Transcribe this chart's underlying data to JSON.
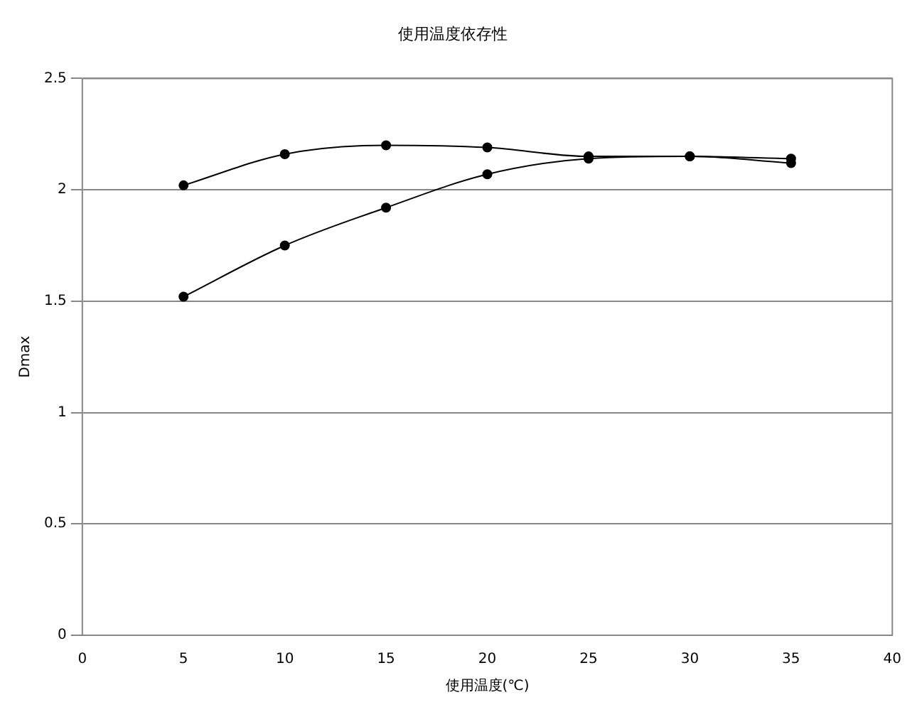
{
  "chart_data": {
    "type": "line",
    "title": "使用温度依存性",
    "xlabel": "使用温度(℃)",
    "ylabel": "Dmax",
    "x": [
      5,
      10,
      15,
      20,
      25,
      30,
      35
    ],
    "series": [
      {
        "color": "#000000",
        "values": [
          2.02,
          2.16,
          2.2,
          2.19,
          2.15,
          2.15,
          2.14
        ]
      },
      {
        "color": "#000000",
        "values": [
          1.52,
          1.75,
          1.92,
          2.07,
          2.14,
          2.15,
          2.12
        ]
      }
    ],
    "xlim": [
      0,
      40
    ],
    "xticks": [
      0,
      5,
      10,
      15,
      20,
      25,
      30,
      35,
      40
    ],
    "ylim": [
      0,
      2.5
    ],
    "yticks": [
      0,
      0.5,
      1,
      1.5,
      2,
      2.5
    ],
    "grid": "y",
    "marker": "circle",
    "line_style": "solid"
  }
}
